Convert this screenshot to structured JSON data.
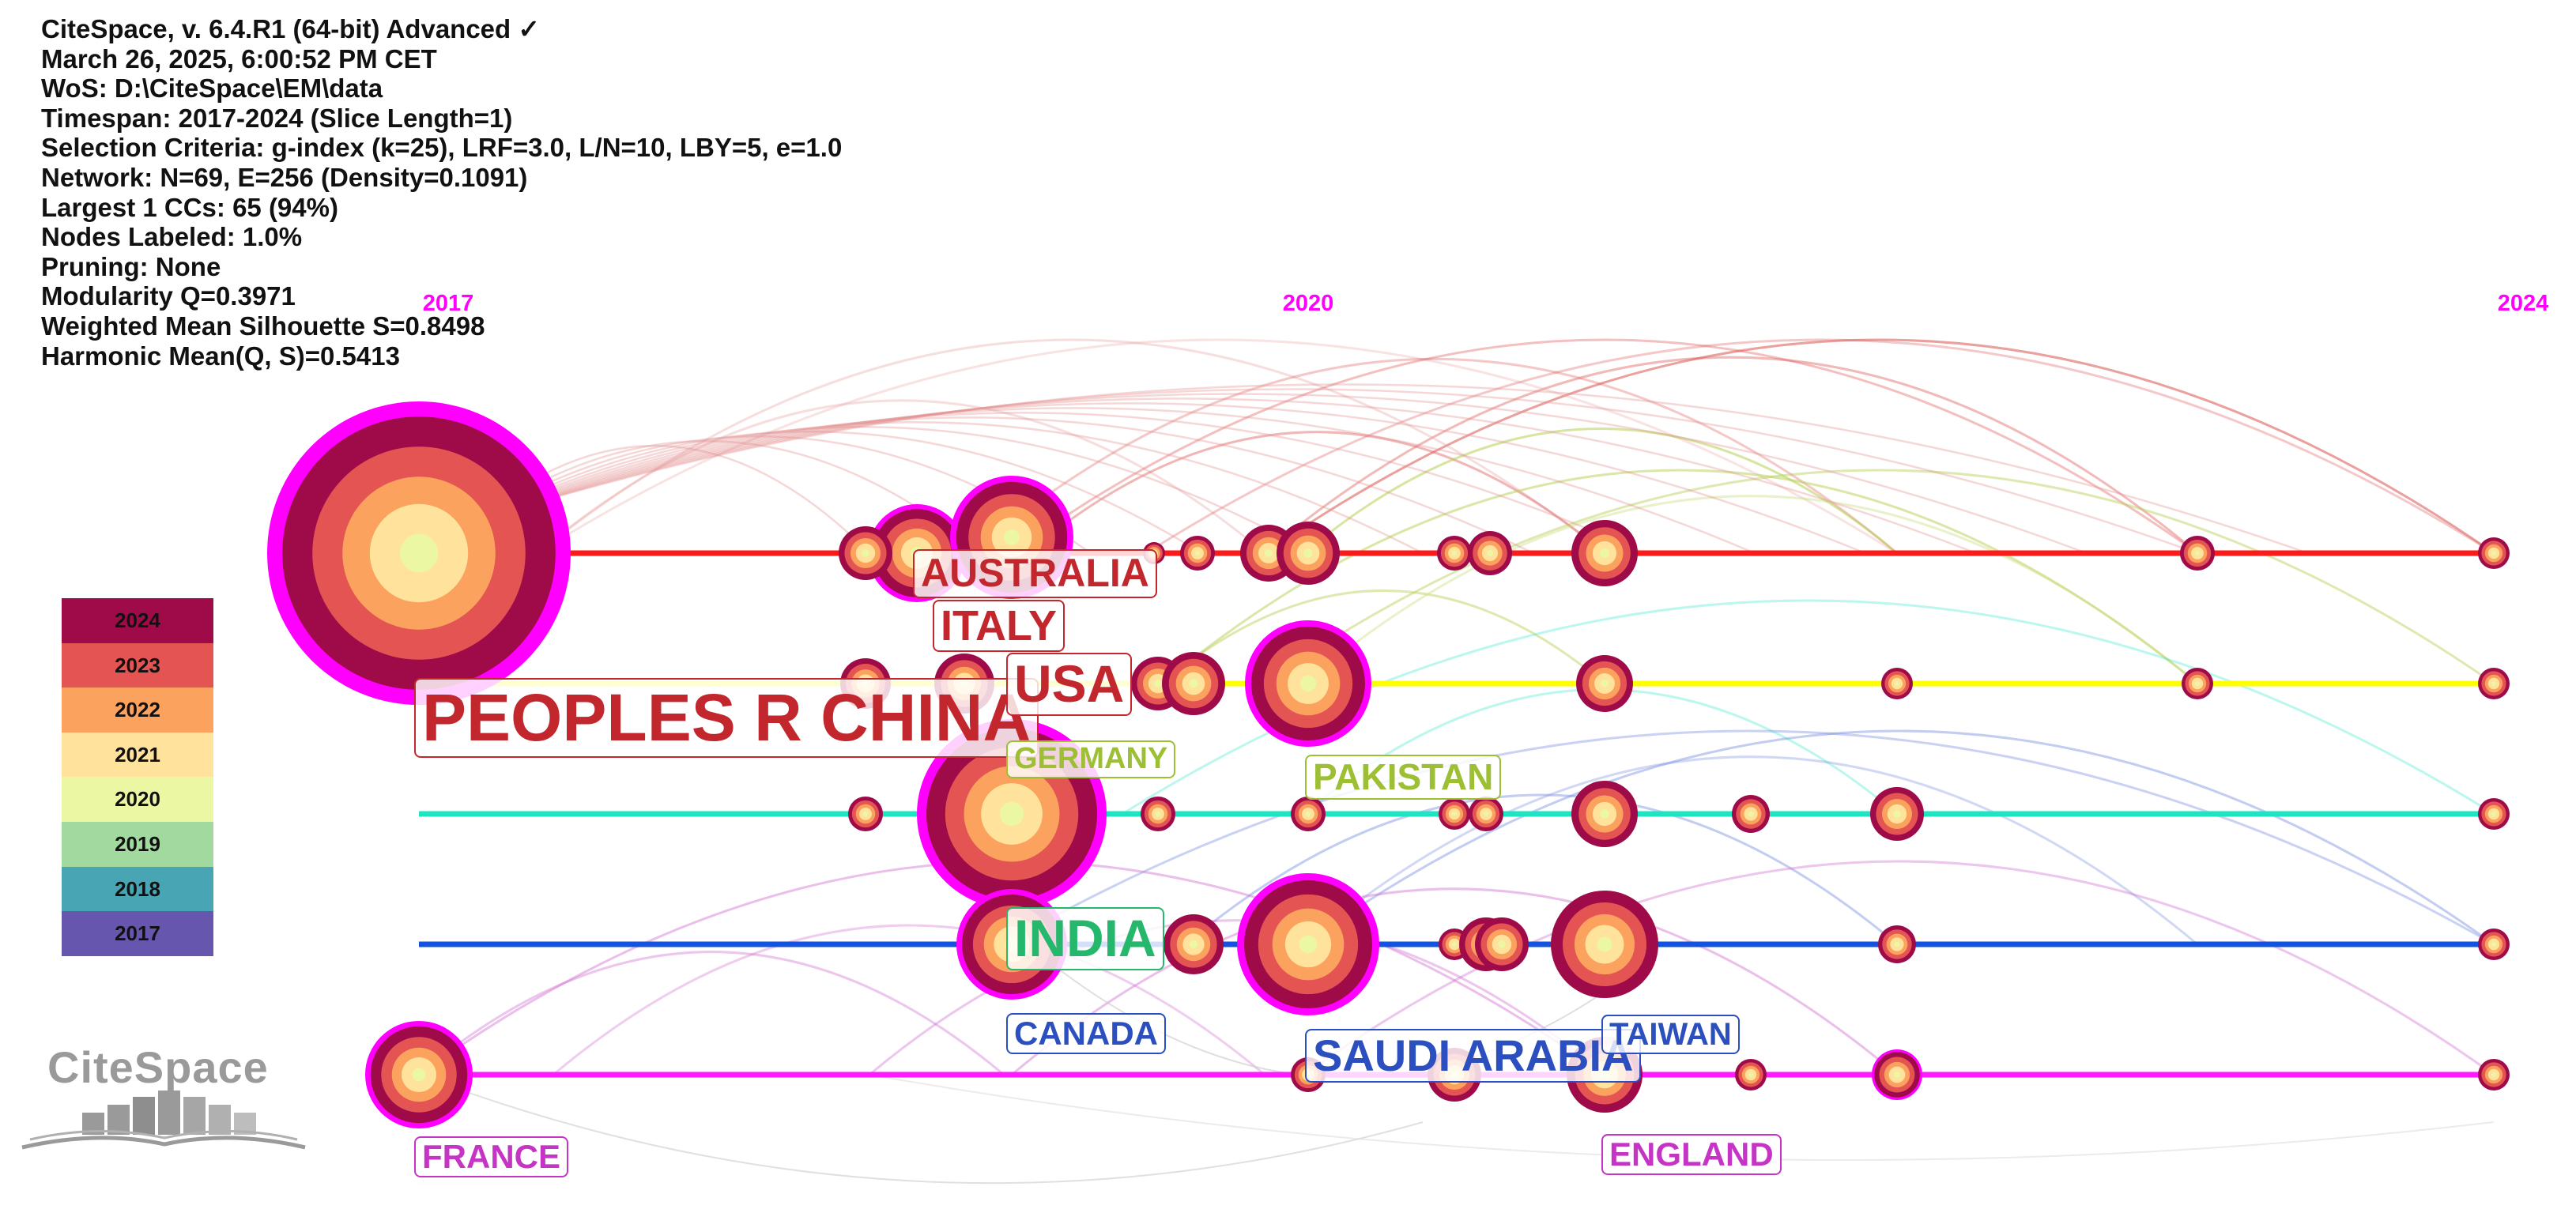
{
  "info_lines": [
    "CiteSpace, v. 6.4.R1 (64-bit) Advanced ✓",
    "March 26, 2025, 6:00:52 PM CET",
    "WoS: D:\\CiteSpace\\EM\\data",
    "Timespan: 2017-2024 (Slice Length=1)",
    "Selection Criteria: g-index (k=25), LRF=3.0, L/N=10, LBY=5, e=1.0",
    "Network: N=69, E=256 (Density=0.1091)",
    "Largest 1 CCs: 65 (94%)",
    "Nodes Labeled: 1.0%",
    "Pruning: None",
    "Modularity Q=0.3971",
    "Weighted Mean Silhouette S=0.8498",
    "Harmonic Mean(Q, S)=0.5413"
  ],
  "timeline": {
    "year_labels": [
      "2017",
      "2020",
      "2024"
    ],
    "lines": [
      {
        "id": "line-0",
        "color": "#ff1a1a"
      },
      {
        "id": "line-1",
        "color": "#ffff00"
      },
      {
        "id": "line-2",
        "color": "#1de5c2"
      },
      {
        "id": "line-3",
        "color": "#1452e0"
      },
      {
        "id": "line-4",
        "color": "#ff1aff"
      }
    ]
  },
  "legend": [
    {
      "year": "2024",
      "color": "#9e0b48"
    },
    {
      "year": "2023",
      "color": "#e35452"
    },
    {
      "year": "2022",
      "color": "#fba25e"
    },
    {
      "year": "2021",
      "color": "#ffe29b"
    },
    {
      "year": "2020",
      "color": "#ecf7a4"
    },
    {
      "year": "2019",
      "color": "#a1d99e"
    },
    {
      "year": "2018",
      "color": "#47a5b4"
    },
    {
      "year": "2017",
      "color": "#6656ad"
    }
  ],
  "node_labels": [
    {
      "text": "PEOPLES R CHINA",
      "color": "#c2272d"
    },
    {
      "text": "AUSTRALIA",
      "color": "#c2272d"
    },
    {
      "text": "ITALY",
      "color": "#c2272d"
    },
    {
      "text": "USA",
      "color": "#c2272d"
    },
    {
      "text": "GERMANY",
      "color": "#9cbf34"
    },
    {
      "text": "PAKISTAN",
      "color": "#9cbf34"
    },
    {
      "text": "INDIA",
      "color": "#25b86d"
    },
    {
      "text": "CANADA",
      "color": "#2b4fbf"
    },
    {
      "text": "SAUDI ARABIA",
      "color": "#2b4fbf"
    },
    {
      "text": "TAIWAN",
      "color": "#2b4fbf"
    },
    {
      "text": "FRANCE",
      "color": "#c634c6"
    },
    {
      "text": "ENGLAND",
      "color": "#c634c6"
    }
  ],
  "logo": {
    "text": "CiteSpace"
  }
}
